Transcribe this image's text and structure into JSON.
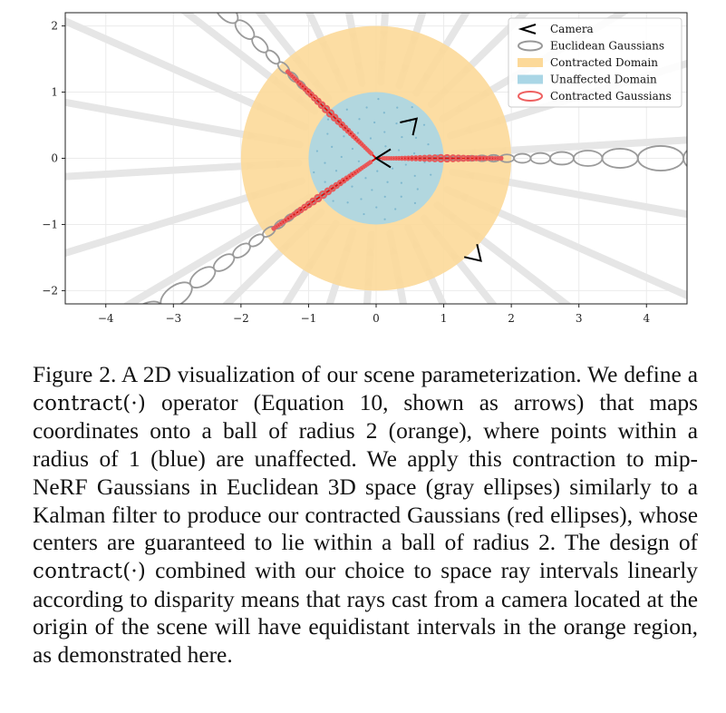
{
  "chart_data": {
    "type": "scatter",
    "title": "",
    "xlabel": "",
    "ylabel": "",
    "xlim": [
      -4.6,
      4.6
    ],
    "ylim": [
      -2.2,
      2.2
    ],
    "xticks": [
      "−4",
      "−3",
      "−2",
      "−1",
      "0",
      "1",
      "2",
      "3",
      "4"
    ],
    "yticks": [
      "2",
      "1",
      "0",
      "−1",
      "−2"
    ],
    "grid": true,
    "legend_position": "top-right",
    "legend": [
      {
        "label": "Camera",
        "kind": "camera",
        "color": "#000000"
      },
      {
        "label": "Euclidean Gaussians",
        "kind": "ellipse",
        "color": "#999999"
      },
      {
        "label": "Contracted Domain",
        "kind": "patch",
        "color": "#fcd999"
      },
      {
        "label": "Unaffected Domain",
        "kind": "patch",
        "color": "#aad6e6"
      },
      {
        "label": "Contracted Gaussians",
        "kind": "ellipse",
        "color": "#ee6060"
      }
    ],
    "regions": [
      {
        "name": "Contracted Domain",
        "radius": 2,
        "color": "#fcd999"
      },
      {
        "name": "Unaffected Domain",
        "radius": 1,
        "color": "#aad6e6"
      }
    ],
    "cameras": [
      {
        "origin": [
          0,
          0
        ],
        "direction_deg": 180
      },
      {
        "origin": [
          0.6,
          0.6
        ],
        "direction_deg": 45
      },
      {
        "origin": [
          1.55,
          -1.55
        ],
        "direction_deg": -45
      }
    ],
    "rays": [
      {
        "direction_deg": 0,
        "color": "#dd1111"
      },
      {
        "direction_deg": 135,
        "color": "#dd1111"
      },
      {
        "direction_deg": -145,
        "color": "#dd1111"
      }
    ]
  },
  "caption": {
    "part1": "Figure 2.  A 2D visualization of our scene parameterization.  We define a ",
    "code1": "contract(·)",
    "part2": " operator (Equation 10, shown as arrows) that maps coordinates onto a ball of radius 2 (orange), where points within a radius of 1 (blue) are unaffected. We apply this contraction to mip-NeRF Gaussians in Euclidean 3D space (gray ellipses) similarly to a Kalman filter to produce our contracted Gaussians (red ellipses), whose centers are guaranteed to lie within a ball of radius 2.  The design of ",
    "code2": "contract(·)",
    "part3": " combined with our choice to space ray intervals linearly according to disparity means that rays cast from a camera located at the origin of the scene will have equidistant intervals in the orange region, as demonstrated here."
  }
}
